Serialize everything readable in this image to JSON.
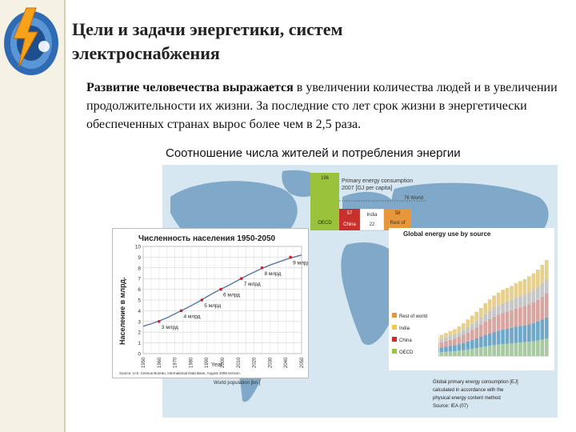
{
  "slide": {
    "title_line1": "Цели и задачи энергетики, систем",
    "title_line2": "электроснабжения",
    "body_bold": "Развитие человечества выражается",
    "body_rest": " в увеличении количества людей и в увеличении продолжительности их жизни. За последние сто лет срок жизни в энергетически обеспеченных странах вырос более чем в 2,5 раза.",
    "subheading": "Соотношение числа жителей и потребления энергии"
  },
  "map_labels": {
    "oecd_value": "196",
    "oecd": "OECD",
    "primary_title": "Primary energy consumption",
    "primary_sub": "2007 [GJ per capita]",
    "world_value": "76 World",
    "china_value": "57",
    "china": "China",
    "india_value": "22",
    "india": "India",
    "rest_value": "58",
    "rest": "Rest of",
    "world_population": "World population [bn.]",
    "footer_1": "Global primary energy consumption [EJ]",
    "footer_2": "calculated in accordance with the",
    "footer_3": "physical energy content method",
    "footer_4": "Source: IEA (07)"
  },
  "population_chart": {
    "title": "Численность населения 1950-2050",
    "ylabel": "Население в млрд.",
    "xlabel": "Year",
    "source": "Source: U.S. Census Bureau, International Data Base, August 2006 version."
  },
  "chart_data": [
    {
      "type": "line",
      "title": "Численность населения 1950-2050",
      "xlabel": "Year",
      "ylabel": "Население в млрд.",
      "x": [
        1950,
        1955,
        1960,
        1965,
        1970,
        1975,
        1980,
        1985,
        1990,
        1995,
        2000,
        2005,
        2010,
        2015,
        2020,
        2025,
        2030,
        2035,
        2040,
        2045,
        2050
      ],
      "y": [
        2.55,
        2.78,
        3.04,
        3.34,
        3.7,
        4.08,
        4.45,
        4.85,
        5.29,
        5.7,
        6.08,
        6.45,
        6.85,
        7.25,
        7.6,
        7.95,
        8.25,
        8.52,
        8.78,
        9.0,
        9.2
      ],
      "xlim": [
        1950,
        2050
      ],
      "ylim": [
        0,
        10
      ],
      "yticks": [
        0,
        1,
        2,
        3,
        4,
        5,
        6,
        7,
        8,
        9,
        10
      ],
      "xticks": [
        1950,
        1960,
        1970,
        1980,
        1990,
        2000,
        2010,
        2020,
        2030,
        2040,
        2050
      ],
      "grid": true,
      "milestones": [
        {
          "year": 1960,
          "value": 3,
          "label": "3 млрд"
        },
        {
          "year": 1974,
          "value": 4,
          "label": "4 млрд"
        },
        {
          "year": 1987,
          "value": 5,
          "label": "5 млрд"
        },
        {
          "year": 1999,
          "value": 6,
          "label": "6 млрд"
        },
        {
          "year": 2012,
          "value": 7,
          "label": "7 млрд"
        },
        {
          "year": 2025,
          "value": 8,
          "label": "8 млрд"
        },
        {
          "year": 2043,
          "value": 9,
          "label": "9 млрд"
        }
      ]
    },
    {
      "type": "bar",
      "title": "Global energy use by source",
      "stacked": true,
      "x_range": [
        1850,
        2007
      ],
      "n_bars": 34,
      "colors": [
        "#a8c9a2",
        "#6fa8c9",
        "#d8a6a0",
        "#c7c7c7",
        "#e6d08c"
      ],
      "totals_relative": [
        0.1,
        0.11,
        0.12,
        0.13,
        0.14,
        0.15,
        0.17,
        0.19,
        0.2,
        0.22,
        0.24,
        0.26,
        0.28,
        0.31,
        0.34,
        0.38,
        0.42,
        0.46,
        0.5,
        0.55,
        0.59,
        0.63,
        0.66,
        0.69,
        0.71,
        0.73,
        0.76,
        0.78,
        0.8,
        0.83,
        0.86,
        0.9,
        0.95,
        1.0
      ]
    },
    {
      "type": "bar",
      "title": "Primary energy consumption 2007 [GJ per capita]",
      "categories": [
        "OECD",
        "China",
        "India",
        "Rest of world"
      ],
      "values": [
        196,
        57,
        22,
        58
      ],
      "world": 76,
      "colors": [
        "#9ac23a",
        "#c9302c",
        "#ffffff",
        "#e8963a"
      ]
    }
  ],
  "energy_legend": {
    "items": [
      "Rest of world",
      "India",
      "China",
      "OECD"
    ],
    "colors": [
      "#e8963a",
      "#f0c84a",
      "#c9302c",
      "#9ac23a"
    ]
  },
  "colors": {
    "sea": "#cfe3ef",
    "land": "#7fa8c9",
    "slide_bg": "#f5f1e4",
    "line": "#5577aa",
    "marker": "#cc2222"
  }
}
